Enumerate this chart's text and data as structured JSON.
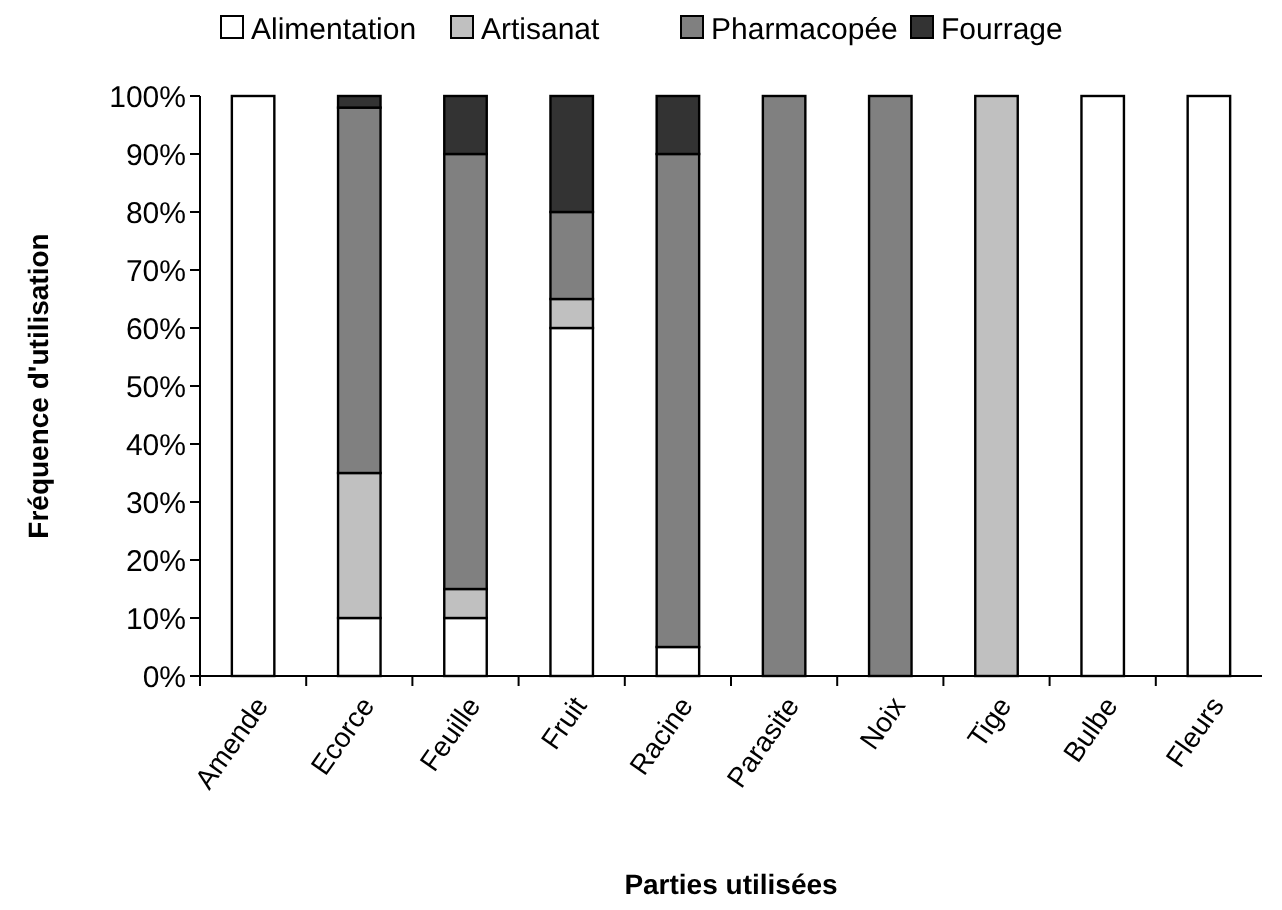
{
  "chart_data": {
    "type": "bar",
    "stacked": true,
    "xlabel": "Parties utilisées",
    "ylabel": "Fréquence d'utilisation",
    "categories": [
      "Amende",
      "Ecorce",
      "Feuille",
      "Fruit",
      "Racine",
      "Parasite",
      "Noix",
      "Tige",
      "Bulbe",
      "Fleurs"
    ],
    "series": [
      {
        "name": "Alimentation",
        "color": "#ffffff",
        "values": [
          100,
          10,
          10,
          60,
          5,
          0,
          0,
          0,
          100,
          100
        ]
      },
      {
        "name": "Artisanat",
        "color": "#c0c0c0",
        "values": [
          0,
          25,
          5,
          5,
          0,
          0,
          0,
          100,
          0,
          0
        ]
      },
      {
        "name": "Pharmacopée",
        "color": "#808080",
        "values": [
          0,
          63,
          75,
          15,
          85,
          100,
          100,
          0,
          0,
          0
        ]
      },
      {
        "name": "Fourrage",
        "color": "#333333",
        "values": [
          0,
          2,
          10,
          20,
          10,
          0,
          0,
          0,
          0,
          0
        ]
      }
    ],
    "ylim": [
      0,
      100
    ],
    "yticks": [
      {
        "value": 0,
        "label": "0%"
      },
      {
        "value": 10,
        "label": "10%"
      },
      {
        "value": 20,
        "label": "20%"
      },
      {
        "value": 30,
        "label": "30%"
      },
      {
        "value": 40,
        "label": "40%"
      },
      {
        "value": 50,
        "label": "50%"
      },
      {
        "value": 60,
        "label": "60%"
      },
      {
        "value": 70,
        "label": "70%"
      },
      {
        "value": 80,
        "label": "80%"
      },
      {
        "value": 90,
        "label": "90%"
      },
      {
        "value": 100,
        "label": "100%"
      }
    ],
    "legend": "top"
  }
}
